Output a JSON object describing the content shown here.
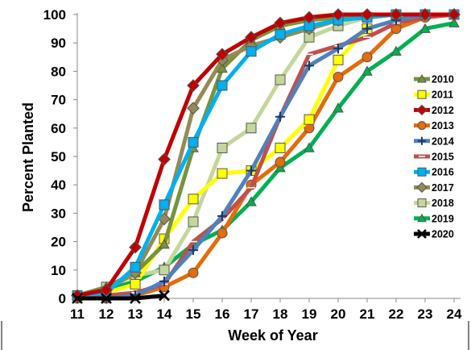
{
  "chart_data": {
    "type": "line",
    "title": "",
    "xlabel": "Week of Year",
    "ylabel": "Percent Planted",
    "xlim": [
      11,
      24
    ],
    "ylim": [
      0,
      100
    ],
    "x_ticks": [
      "11",
      "12",
      "13",
      "14",
      "15",
      "16",
      "17",
      "18",
      "19",
      "20",
      "21",
      "22",
      "23",
      "24"
    ],
    "y_ticks": [
      "0",
      "10",
      "20",
      "30",
      "40",
      "50",
      "60",
      "70",
      "80",
      "90",
      "100"
    ],
    "grid": false,
    "legend_position": "right",
    "series": [
      {
        "name": "2010",
        "color": "#77933C",
        "marker": "triangle",
        "x": [
          11,
          12,
          13,
          14,
          15,
          16,
          17,
          18,
          19,
          20,
          21,
          22,
          23,
          24
        ],
        "y": [
          1,
          4,
          9,
          19,
          53,
          81,
          91,
          96,
          98,
          99,
          100,
          100,
          100,
          100
        ]
      },
      {
        "name": "2011",
        "color": "#FFFF00",
        "marker": "square",
        "x": [
          11,
          12,
          13,
          14,
          15,
          16,
          17,
          18,
          19,
          20,
          21,
          22,
          23,
          24
        ],
        "y": [
          1,
          2,
          5,
          21,
          35,
          44,
          45,
          53,
          63,
          84,
          95,
          98,
          100,
          100
        ]
      },
      {
        "name": "2012",
        "color": "#C00000",
        "marker": "diamond",
        "x": [
          11,
          12,
          13,
          14,
          15,
          16,
          17,
          18,
          19,
          20,
          21,
          22,
          23,
          24
        ],
        "y": [
          1,
          3,
          18,
          49,
          75,
          86,
          92,
          97,
          99,
          100,
          100,
          100,
          100,
          100
        ]
      },
      {
        "name": "2013",
        "color": "#E46C0A",
        "marker": "circle",
        "x": [
          11,
          12,
          13,
          14,
          15,
          16,
          17,
          18,
          19,
          20,
          21,
          22,
          23,
          24
        ],
        "y": [
          0,
          0,
          1,
          4,
          9,
          23,
          40,
          48,
          60,
          78,
          85,
          95,
          99,
          100
        ]
      },
      {
        "name": "2014",
        "color": "#4F81BD",
        "marker": "plus",
        "x": [
          11,
          12,
          13,
          14,
          15,
          16,
          17,
          18,
          19,
          20,
          21,
          22,
          23,
          24
        ],
        "y": [
          0,
          0,
          1,
          6,
          17,
          29,
          45,
          64,
          82,
          88,
          95,
          98,
          100,
          100
        ]
      },
      {
        "name": "2015",
        "color": "#C0504D",
        "marker": "dash",
        "x": [
          11,
          12,
          13,
          14,
          15,
          16,
          17,
          18,
          19,
          20,
          21,
          22,
          23,
          24
        ],
        "y": [
          0,
          1,
          2,
          5,
          20,
          28,
          39,
          64,
          86,
          89,
          92,
          97,
          99,
          100
        ]
      },
      {
        "name": "2016",
        "color": "#00B0F0",
        "marker": "square",
        "x": [
          11,
          12,
          13,
          14,
          15,
          16,
          17,
          18,
          19,
          20,
          21,
          22,
          23,
          24
        ],
        "y": [
          1,
          2,
          11,
          33,
          55,
          75,
          87,
          93,
          96,
          98,
          99,
          100,
          100,
          100
        ]
      },
      {
        "name": "2017",
        "color": "#948A54",
        "marker": "diamond",
        "x": [
          11,
          12,
          13,
          14,
          15,
          16,
          17,
          18,
          19,
          20,
          21,
          22,
          23,
          24
        ],
        "y": [
          1,
          3,
          9,
          28,
          67,
          84,
          89,
          92,
          95,
          98,
          99,
          100,
          100,
          100
        ]
      },
      {
        "name": "2018",
        "color": "#C4D79B",
        "marker": "square",
        "x": [
          11,
          12,
          13,
          14,
          15,
          16,
          17,
          18,
          19,
          20,
          21,
          22,
          23,
          24
        ],
        "y": [
          1,
          4,
          8,
          10,
          27,
          53,
          60,
          77,
          92,
          96,
          99,
          100,
          100,
          100
        ]
      },
      {
        "name": "2019",
        "color": "#00B050",
        "marker": "triangle",
        "x": [
          11,
          12,
          13,
          14,
          15,
          16,
          17,
          18,
          19,
          20,
          21,
          22,
          23,
          24
        ],
        "y": [
          1,
          3,
          6,
          11,
          19,
          24,
          34,
          46,
          53,
          67,
          80,
          87,
          95,
          97
        ]
      },
      {
        "name": "2020",
        "color": "#000000",
        "marker": "x",
        "x": [
          11,
          12,
          13,
          14
        ],
        "y": [
          0,
          0,
          0,
          1
        ]
      }
    ]
  }
}
